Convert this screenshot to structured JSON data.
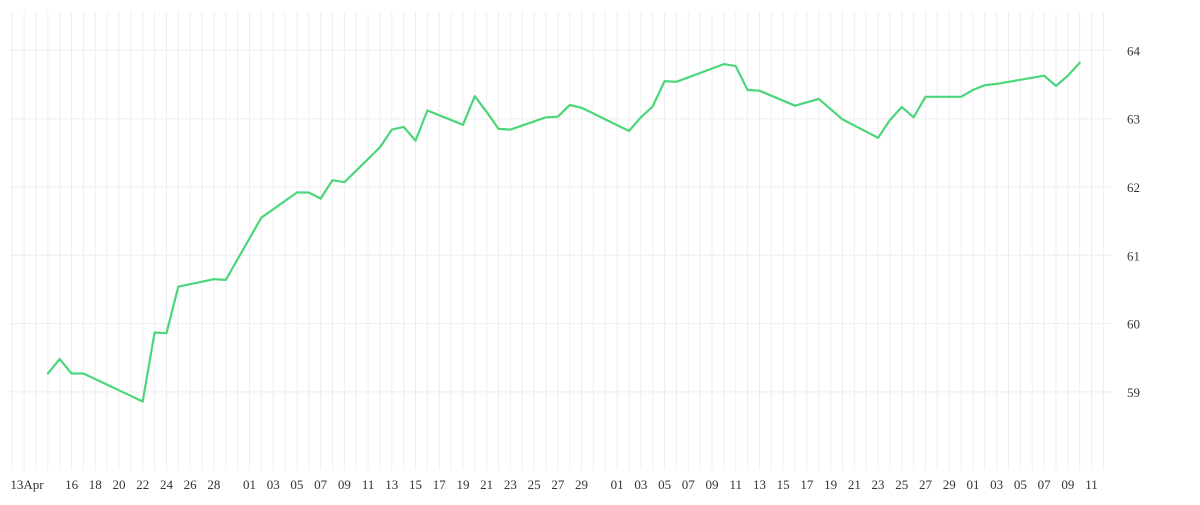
{
  "chart_data": {
    "type": "line",
    "title": "",
    "xlabel": "",
    "ylabel": "",
    "ylim": [
      58,
      65
    ],
    "yticks": [
      59,
      60,
      61,
      62,
      63,
      64
    ],
    "grid": true,
    "legend": "none",
    "line_color": "#4cd67a",
    "grid_color": "#eeeeee",
    "x_tick_labels": [
      "13Apr",
      "16",
      "18",
      "20",
      "22",
      "24",
      "26",
      "28",
      "01",
      "03",
      "05",
      "07",
      "09",
      "11",
      "13",
      "15",
      "17",
      "19",
      "21",
      "23",
      "25",
      "27",
      "29",
      "01",
      "03",
      "05",
      "07",
      "09",
      "11",
      "13",
      "15",
      "17",
      "19",
      "21",
      "23",
      "25",
      "27",
      "29",
      "01",
      "03",
      "05",
      "07",
      "09",
      "11"
    ],
    "series": [
      {
        "x": [
          "2010-04-14",
          "2010-04-15",
          "2010-04-16",
          "2010-04-17",
          "2010-04-22",
          "2010-04-23",
          "2010-04-24",
          "2010-04-25",
          "2010-04-28",
          "2010-04-29",
          "2010-05-02",
          "2010-05-05",
          "2010-05-06",
          "2010-05-07",
          "2010-05-08",
          "2010-05-09",
          "2010-05-12",
          "2010-05-13",
          "2010-05-14",
          "2010-05-15",
          "2010-05-16",
          "2010-05-19",
          "2010-05-20",
          "2010-05-21",
          "2010-05-22",
          "2010-05-23",
          "2010-05-26",
          "2010-05-27",
          "2010-05-28",
          "2010-05-29",
          "2010-06-02",
          "2010-06-03",
          "2010-06-04",
          "2010-06-05",
          "2010-06-06",
          "2010-06-10",
          "2010-06-11",
          "2010-06-12",
          "2010-06-13",
          "2010-06-16",
          "2010-06-17",
          "2010-06-18",
          "2010-06-20",
          "2010-06-23",
          "2010-06-24",
          "2010-06-25",
          "2010-06-26",
          "2010-06-27",
          "2010-06-30",
          "2010-07-01",
          "2010-07-02",
          "2010-07-03",
          "2010-07-07",
          "2010-07-08",
          "2010-07-09",
          "2010-07-10"
        ],
        "values": [
          59.27,
          59.48,
          59.27,
          59.27,
          58.86,
          59.87,
          59.86,
          60.54,
          60.65,
          60.64,
          61.55,
          61.92,
          61.92,
          61.83,
          62.1,
          62.07,
          62.58,
          62.84,
          62.88,
          62.68,
          63.12,
          62.91,
          63.33,
          63.1,
          62.85,
          62.84,
          63.02,
          63.03,
          63.2,
          63.16,
          62.82,
          63.02,
          63.18,
          63.55,
          63.54,
          63.8,
          63.77,
          63.42,
          63.41,
          63.19,
          63.24,
          63.29,
          62.99,
          62.72,
          62.98,
          63.17,
          63.02,
          63.32,
          63.32,
          63.42,
          63.49,
          63.51,
          63.63,
          63.48,
          63.63,
          63.82
        ]
      }
    ]
  }
}
